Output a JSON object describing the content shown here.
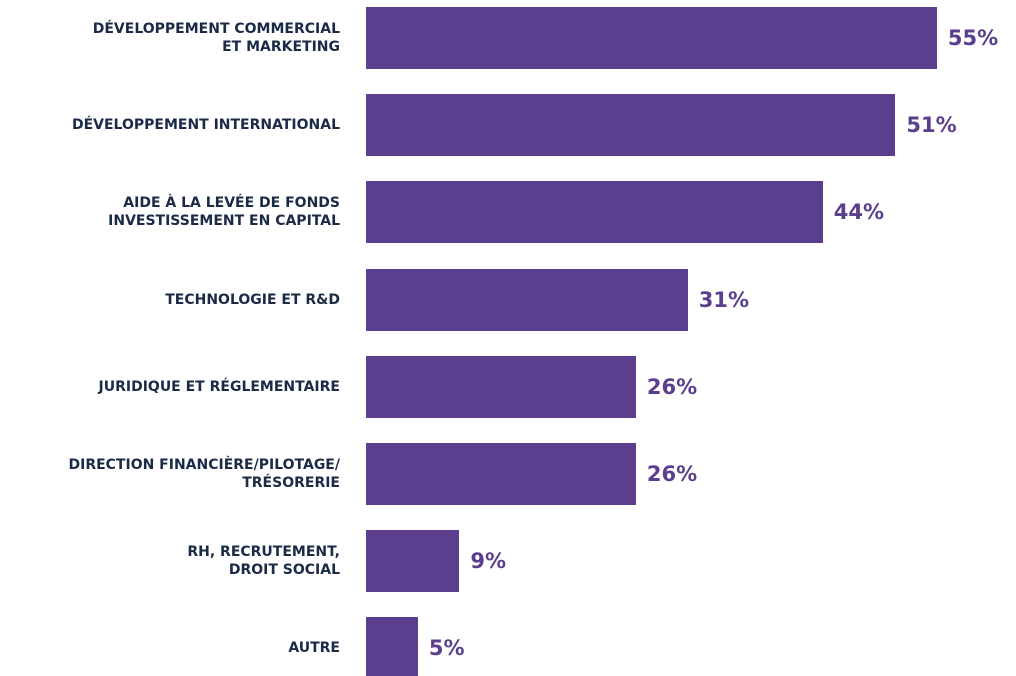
{
  "chart_data": {
    "type": "bar",
    "orientation": "horizontal",
    "color": "#5b3f8e",
    "categories": [
      "DÉVELOPPEMENT COMMERCIAL\nET MARKETING",
      "DÉVELOPPEMENT INTERNATIONAL",
      "AIDE À LA LEVÉE DE FONDS\nINVESTISSEMENT EN CAPITAL",
      "TECHNOLOGIE ET R&D",
      "JURIDIQUE ET RÉGLEMENTAIRE",
      "DIRECTION FINANCIÈRE/PILOTAGE/\nTRÉSORERIE",
      "RH, RECRUTEMENT,\nDROIT SOCIAL",
      "AUTRE"
    ],
    "values": [
      55,
      51,
      44,
      31,
      26,
      26,
      9,
      5
    ],
    "value_labels": [
      "55%",
      "51%",
      "44%",
      "31%",
      "26%",
      "26%",
      "9%",
      "5%"
    ]
  }
}
